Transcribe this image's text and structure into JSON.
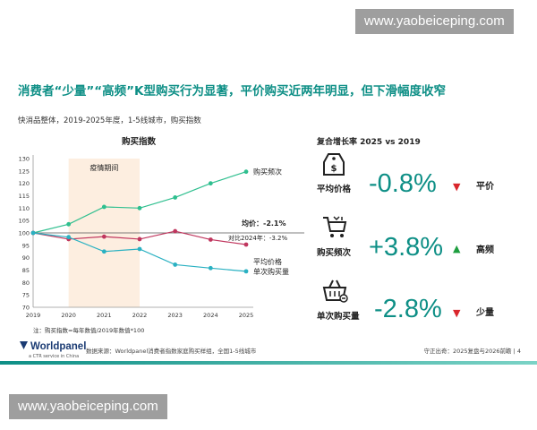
{
  "watermark": "www.yaobeiceping.com",
  "title": "消费者“少量”“高频”K型购买行为显著，平价购买近两年明显，但下滑幅度收窄",
  "subtitle": "快消品整体，2019-2025年度，1-5线城市，购买指数",
  "chart_data": {
    "type": "line",
    "title": "购买指数",
    "x": [
      "2019",
      "2020",
      "2021",
      "2022",
      "2023",
      "2024",
      "2025"
    ],
    "ylim": [
      70,
      130
    ],
    "yticks": [
      70,
      75,
      80,
      85,
      90,
      95,
      100,
      105,
      110,
      115,
      120,
      125,
      130
    ],
    "series": [
      {
        "name": "购买频次",
        "values": [
          100,
          103.5,
          110.5,
          110,
          114.3,
          120,
          124.7
        ],
        "color": "#2fbf8f"
      },
      {
        "name": "平均价格",
        "values": [
          100,
          97.5,
          98.5,
          97.5,
          100.7,
          97.3,
          95.3
        ],
        "color": "#c0365e"
      },
      {
        "name": "单次购买量",
        "values": [
          100,
          98.3,
          92.5,
          93.5,
          87.2,
          85.8,
          84.5
        ],
        "color": "#2ab1c2"
      }
    ],
    "reference_line": 100,
    "shaded_label": "疫情期间",
    "shaded_range": [
      "2020",
      "2022"
    ],
    "annotations": [
      "均价：-2.1%",
      "对比2024年：-3.2%"
    ],
    "note": "注：购买指数=每年数值/2019年数值*100"
  },
  "summary": {
    "title": "复合增长率 2025 vs 2019",
    "metrics": [
      {
        "label": "平均价格",
        "value": "-0.8%",
        "arrow": "▼",
        "arrow_color": "#d9262c",
        "tag": "平价",
        "icon": "price-tag-icon"
      },
      {
        "label": "购买频次",
        "value": "+3.8%",
        "arrow": "▲",
        "arrow_color": "#1e9e3f",
        "tag": "高频",
        "icon": "shopping-cart-icon"
      },
      {
        "label": "单次购买量",
        "value": "-2.8%",
        "arrow": "▼",
        "arrow_color": "#d9262c",
        "tag": "少量",
        "icon": "shopping-basket-icon"
      }
    ]
  },
  "footer": {
    "logo": "Worldpanel",
    "logo_sub": "a CTR service in China",
    "source": "数据来源：Worldpanel消费者指数家庭购买样组，全国1-5线城市",
    "right": "守正出奇：2025复盘与2026前瞻 | 4"
  }
}
